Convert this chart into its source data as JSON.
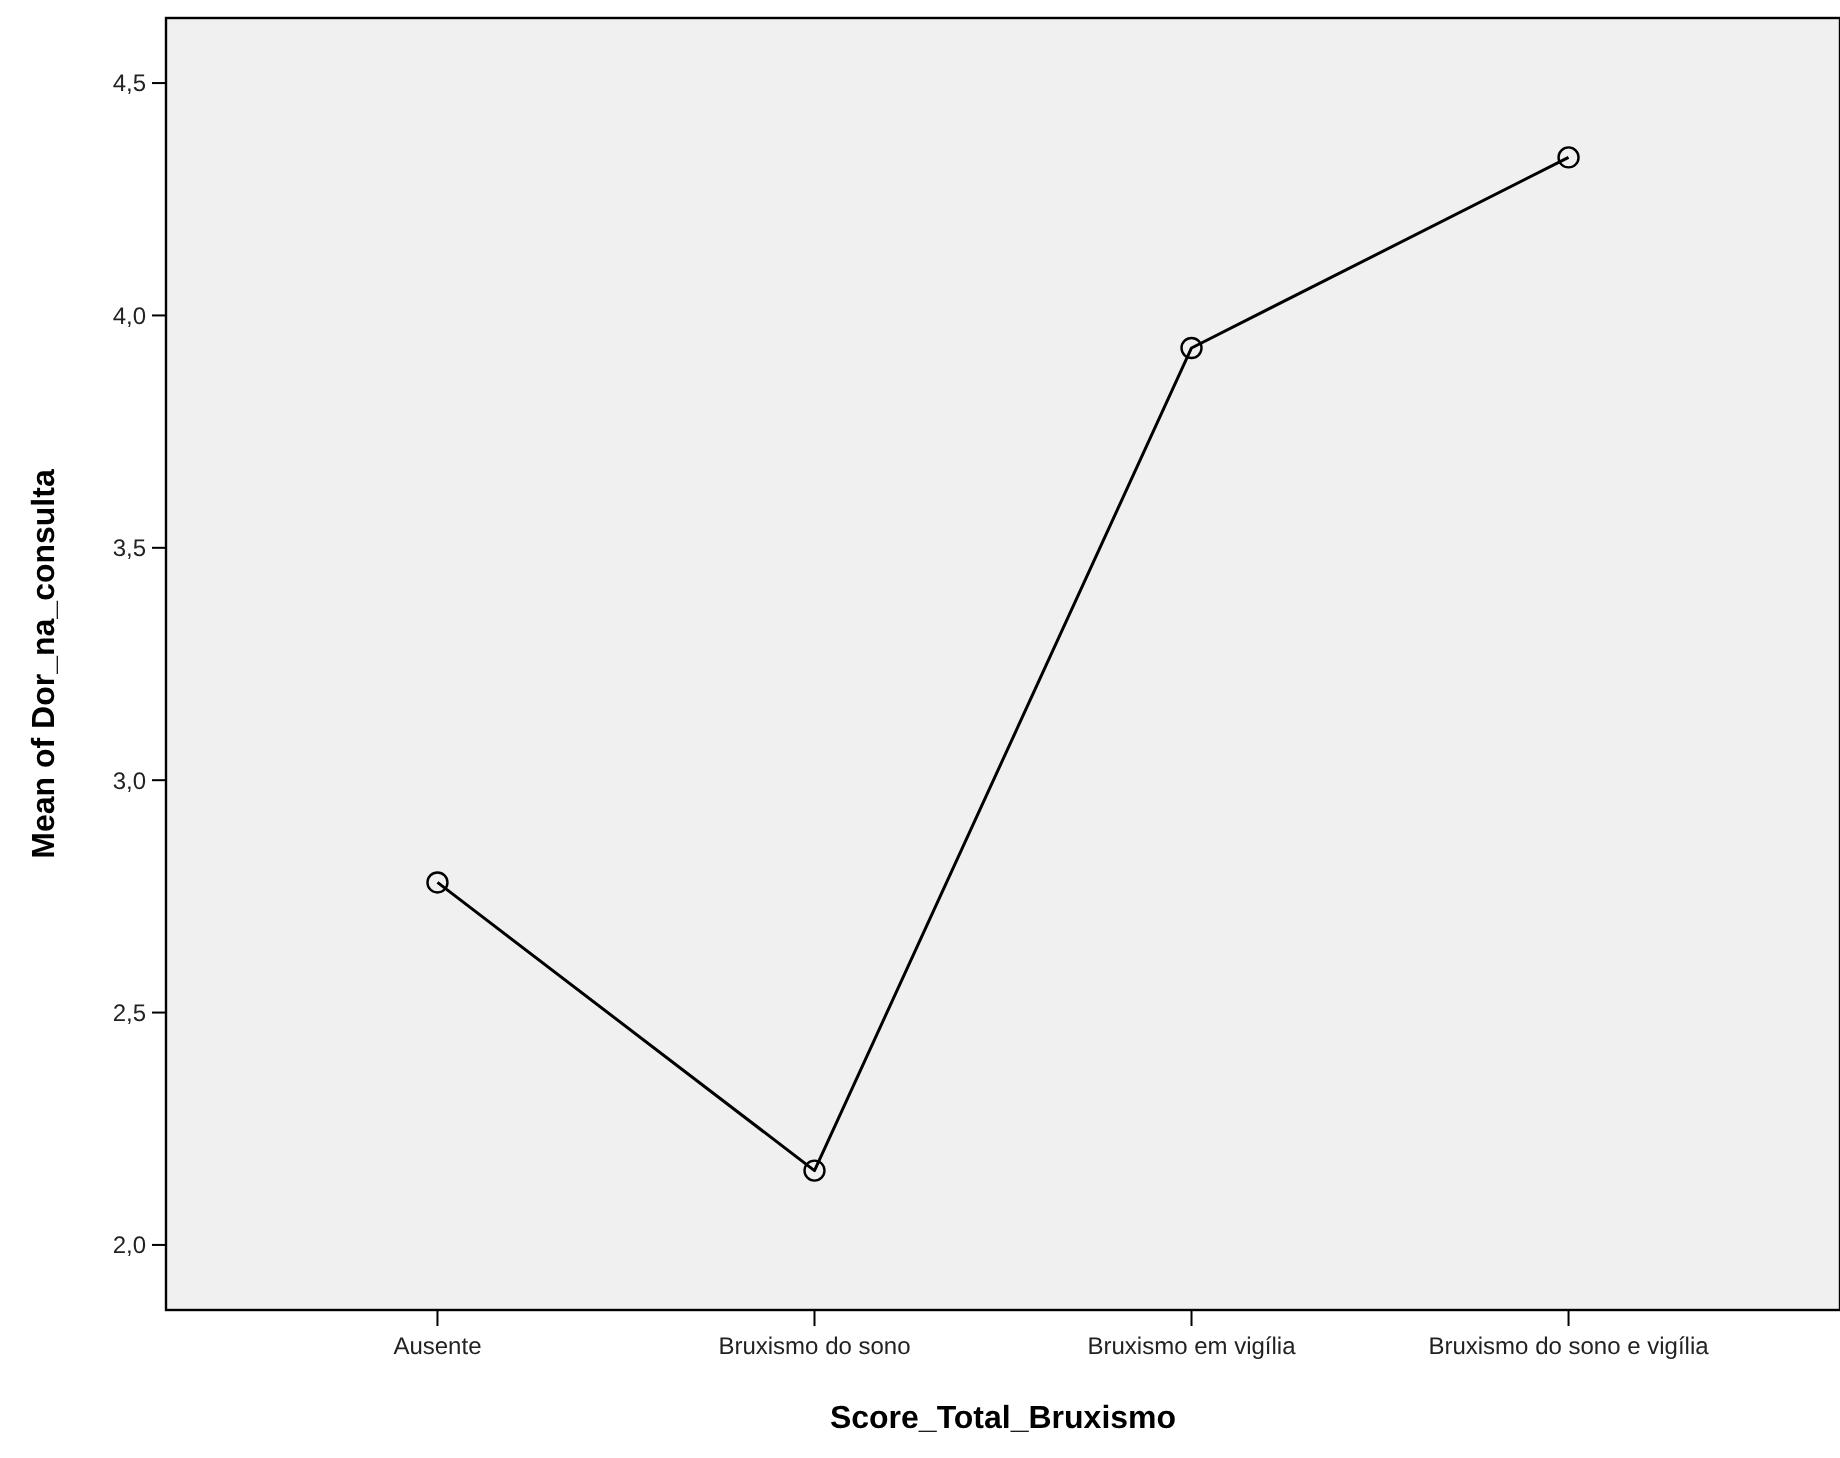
{
  "chart_data": {
    "type": "line",
    "xlabel": "Score_Total_Bruxismo",
    "ylabel": "Mean of Dor_na_consulta",
    "categories": [
      "Ausente",
      "Bruxismo do sono",
      "Bruxismo em vigília",
      "Bruxismo do sono e vigília"
    ],
    "series": [
      {
        "color": "#000000",
        "values": [
          2.78,
          2.16,
          3.93,
          4.34
        ]
      }
    ],
    "ylim": [
      1.86,
      4.64
    ],
    "yticks": [
      {
        "value": 2.0,
        "label": "2,0"
      },
      {
        "value": 2.5,
        "label": "2,5"
      },
      {
        "value": 3.0,
        "label": "3,0"
      },
      {
        "value": 3.5,
        "label": "3,5"
      },
      {
        "value": 4.0,
        "label": "4,0"
      },
      {
        "value": 4.5,
        "label": "4,5"
      }
    ],
    "marker": "circle",
    "line_style": "solid"
  }
}
